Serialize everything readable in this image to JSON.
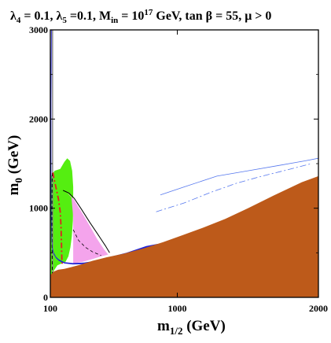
{
  "chart_data": {
    "type": "area",
    "title_parts": {
      "lambda4": "λ",
      "lambda4_sub": "4",
      "lambda4_val": " = 0.1, ",
      "lambda5": "λ",
      "lambda5_sub": "5",
      "lambda5_val": " =0.1, M",
      "min_sub": "in",
      "min_val": " = 10",
      "min_exp": "17",
      "min_unit": " GeV, tan β = 55,  μ > 0"
    },
    "xlabel_main": "m",
    "xlabel_sub": "1/2",
    "xlabel_unit": " (GeV)",
    "ylabel_main": "m",
    "ylabel_sub": "0",
    "ylabel_unit": " (GeV)",
    "xlim": [
      100,
      2000
    ],
    "ylim": [
      0,
      3000
    ],
    "xticks": [
      100,
      1000,
      2000
    ],
    "yticks": [
      0,
      1000,
      2000,
      3000
    ],
    "x_tick_labels": [
      "100",
      "1000",
      "2000"
    ],
    "y_tick_labels": [
      "0",
      "1000",
      "2000",
      "3000"
    ],
    "colors": {
      "excluded": "#bd5a1a",
      "wmap_green": "#55ee11",
      "pink": "#f4a4ec",
      "coannihilation_blue": "#1f22d8",
      "higgs_red": "#e02020",
      "boundary": "#000000",
      "grey_line": "#888888",
      "blue_line": "#5577ee"
    },
    "regions": {
      "excluded_brown": [
        [
          100,
          0
        ],
        [
          2000,
          0
        ],
        [
          2000,
          1360
        ],
        [
          1880,
          1290
        ],
        [
          1680,
          1140
        ],
        [
          1500,
          1000
        ],
        [
          1340,
          880
        ],
        [
          1180,
          780
        ],
        [
          1040,
          700
        ],
        [
          900,
          620
        ],
        [
          760,
          550
        ],
        [
          620,
          490
        ],
        [
          500,
          450
        ],
        [
          400,
          410
        ],
        [
          320,
          370
        ],
        [
          250,
          340
        ],
        [
          200,
          320
        ],
        [
          155,
          310
        ],
        [
          125,
          290
        ],
        [
          100,
          250
        ]
      ],
      "green": [
        [
          100,
          1420
        ],
        [
          108,
          1360
        ],
        [
          130,
          1420
        ],
        [
          170,
          1440
        ],
        [
          200,
          1520
        ],
        [
          220,
          1560
        ],
        [
          240,
          1530
        ],
        [
          255,
          1420
        ],
        [
          262,
          1240
        ],
        [
          262,
          1040
        ],
        [
          260,
          860
        ],
        [
          252,
          680
        ],
        [
          242,
          560
        ],
        [
          228,
          460
        ],
        [
          208,
          400
        ],
        [
          180,
          380
        ],
        [
          150,
          360
        ],
        [
          125,
          300
        ],
        [
          108,
          200
        ],
        [
          100,
          210
        ]
      ],
      "pink": [
        [
          215,
          1180
        ],
        [
          262,
          1110
        ],
        [
          320,
          960
        ],
        [
          380,
          800
        ],
        [
          430,
          660
        ],
        [
          480,
          540
        ],
        [
          510,
          480
        ],
        [
          460,
          460
        ],
        [
          400,
          430
        ],
        [
          330,
          400
        ],
        [
          262,
          380
        ],
        [
          262,
          600
        ],
        [
          262,
          900
        ],
        [
          250,
          1120
        ]
      ],
      "blue_strip": [
        [
          105,
          3000
        ],
        [
          105,
          2880
        ],
        [
          103,
          2600
        ],
        [
          102,
          2000
        ],
        [
          102,
          1400
        ],
        [
          104,
          900
        ],
        [
          108,
          650
        ],
        [
          114,
          530
        ],
        [
          125,
          480
        ],
        [
          140,
          440
        ],
        [
          160,
          410
        ],
        [
          200,
          380
        ],
        [
          260,
          370
        ],
        [
          340,
          372
        ],
        [
          420,
          390
        ],
        [
          500,
          420
        ],
        [
          640,
          470
        ],
        [
          780,
          550
        ],
        [
          860,
          580
        ],
        [
          880,
          590
        ],
        [
          860,
          600
        ],
        [
          780,
          575
        ],
        [
          640,
          500
        ],
        [
          500,
          445
        ],
        [
          420,
          410
        ],
        [
          340,
          390
        ],
        [
          260,
          385
        ],
        [
          200,
          395
        ],
        [
          160,
          425
        ],
        [
          140,
          455
        ],
        [
          125,
          500
        ],
        [
          115,
          560
        ],
        [
          110,
          700
        ],
        [
          108,
          1000
        ],
        [
          107,
          1600
        ],
        [
          107,
          2200
        ],
        [
          109,
          2700
        ],
        [
          110,
          3000
        ]
      ]
    },
    "lines": {
      "black_solid": [
        [
          190,
          1200
        ],
        [
          232,
          1170
        ],
        [
          270,
          1110
        ],
        [
          320,
          990
        ],
        [
          380,
          840
        ],
        [
          440,
          700
        ],
        [
          490,
          580
        ],
        [
          520,
          500
        ]
      ],
      "black_dashed": [
        [
          116,
          0
        ],
        [
          114,
          300
        ],
        [
          112,
          600
        ],
        [
          111,
          900
        ],
        [
          112,
          1200
        ],
        [
          114,
          1420
        ]
      ],
      "red_dashdot": [
        [
          118,
          1400
        ],
        [
          128,
          1320
        ],
        [
          142,
          1220
        ],
        [
          158,
          1100
        ],
        [
          170,
          960
        ],
        [
          176,
          800
        ],
        [
          179,
          600
        ],
        [
          182,
          420
        ],
        [
          185,
          350
        ]
      ],
      "pink_dashed": [
        [
          262,
          760
        ],
        [
          300,
          640
        ],
        [
          350,
          560
        ],
        [
          400,
          510
        ],
        [
          460,
          470
        ]
      ],
      "grey_vertical_1": [
        [
          114,
          0
        ],
        [
          114,
          3000
        ]
      ],
      "grey_vertical_2": [
        [
          118,
          0
        ],
        [
          118,
          3000
        ]
      ],
      "blue_long": [
        [
          880,
          1150
        ],
        [
          1050,
          1240
        ],
        [
          1280,
          1360
        ],
        [
          1500,
          1420
        ],
        [
          1720,
          1480
        ],
        [
          1900,
          1530
        ],
        [
          2000,
          1560
        ]
      ],
      "blue_dashdot": [
        [
          850,
          960
        ],
        [
          1050,
          1060
        ],
        [
          1240,
          1180
        ],
        [
          1420,
          1280
        ],
        [
          1600,
          1360
        ],
        [
          1780,
          1430
        ],
        [
          1950,
          1500
        ]
      ]
    },
    "white_patch": [
      [
        1150,
        1470
      ],
      [
        1300,
        1520
      ],
      [
        1500,
        1540
      ],
      [
        1700,
        1550
      ],
      [
        1900,
        1545
      ],
      [
        2000,
        1540
      ],
      [
        2000,
        1400
      ],
      [
        1880,
        1340
      ],
      [
        1700,
        1360
      ],
      [
        1500,
        1360
      ],
      [
        1300,
        1380
      ],
      [
        1180,
        1410
      ]
    ]
  }
}
